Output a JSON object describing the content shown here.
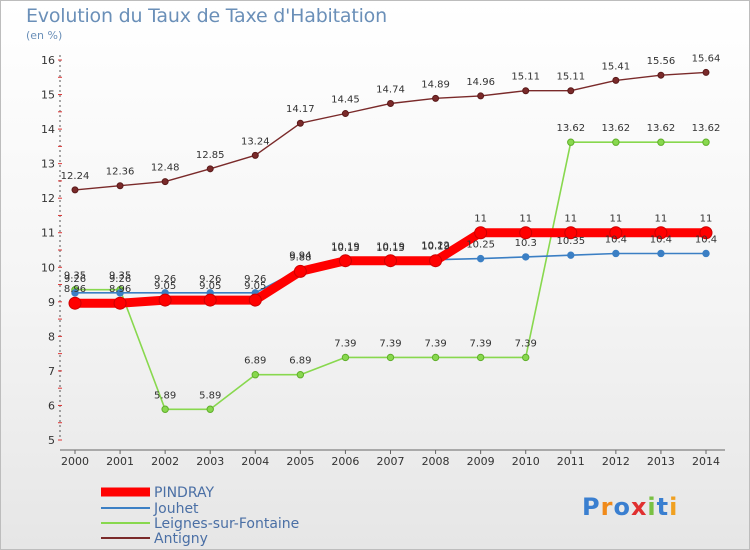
{
  "title": "Evolution du Taux de Taxe d'Habitation",
  "subtitle": "(en %)",
  "logo_text": "Proxiti",
  "chart_data": {
    "type": "line",
    "title": "Evolution du Taux de Taxe d'Habitation",
    "ylabel": "(en %)",
    "xlabel": "",
    "ylim": [
      5,
      16
    ],
    "yticks": [
      "5",
      "6",
      "7",
      "8",
      "9",
      "10",
      "11",
      "12",
      "13",
      "14",
      "15",
      "16"
    ],
    "grid": false,
    "legend_position": "bottom-left",
    "categories": [
      "2000",
      "2001",
      "2002",
      "2003",
      "2004",
      "2005",
      "2006",
      "2007",
      "2008",
      "2009",
      "2010",
      "2011",
      "2012",
      "2013",
      "2014"
    ],
    "series": [
      {
        "name": "PINDRAY",
        "color": "#ff0000",
        "values": [
          8.96,
          8.96,
          9.05,
          9.05,
          9.05,
          9.88,
          10.19,
          10.19,
          10.19,
          11,
          11,
          11,
          11,
          11,
          11
        ],
        "labels": [
          "8.96",
          "8.96",
          "9.05",
          "9.05",
          "9.05",
          "9.88",
          "10.19",
          "10.19",
          "10.19",
          "11",
          "11",
          "11",
          "11",
          "11",
          "11"
        ]
      },
      {
        "name": "Jouhet",
        "color": "#3b7fc4",
        "values": [
          9.26,
          9.26,
          9.26,
          9.26,
          9.26,
          9.94,
          10.15,
          10.15,
          10.22,
          10.25,
          10.3,
          10.35,
          10.4,
          10.4,
          10.4
        ],
        "labels": [
          "9.26",
          "9.26",
          "9.26",
          "9.26",
          "9.26",
          "9.94",
          "10.15",
          "10.15",
          "10.22",
          "10.25",
          "10.3",
          "10.35",
          "10.4",
          "10.4",
          "10.4"
        ]
      },
      {
        "name": "Leignes-sur-Fontaine",
        "color": "#88d84e",
        "values": [
          9.35,
          9.35,
          5.89,
          5.89,
          6.89,
          6.89,
          7.39,
          7.39,
          7.39,
          7.39,
          7.39,
          13.62,
          13.62,
          13.62,
          13.62
        ],
        "labels": [
          "9.35",
          "9.35",
          "5.89",
          "5.89",
          "6.89",
          "6.89",
          "7.39",
          "7.39",
          "7.39",
          "7.39",
          "7.39",
          "13.62",
          "13.62",
          "13.62",
          "13.62"
        ]
      },
      {
        "name": "Antigny",
        "color": "#7a2a2a",
        "values": [
          12.24,
          12.36,
          12.48,
          12.85,
          13.24,
          14.17,
          14.45,
          14.74,
          14.89,
          14.96,
          15.11,
          15.11,
          15.41,
          15.56,
          15.64
        ],
        "labels": [
          "12.24",
          "12.36",
          "12.48",
          "12.85",
          "13.24",
          "14.17",
          "14.45",
          "14.74",
          "14.89",
          "14.96",
          "15.11",
          "15.11",
          "15.41",
          "15.56",
          "15.64"
        ]
      }
    ]
  }
}
